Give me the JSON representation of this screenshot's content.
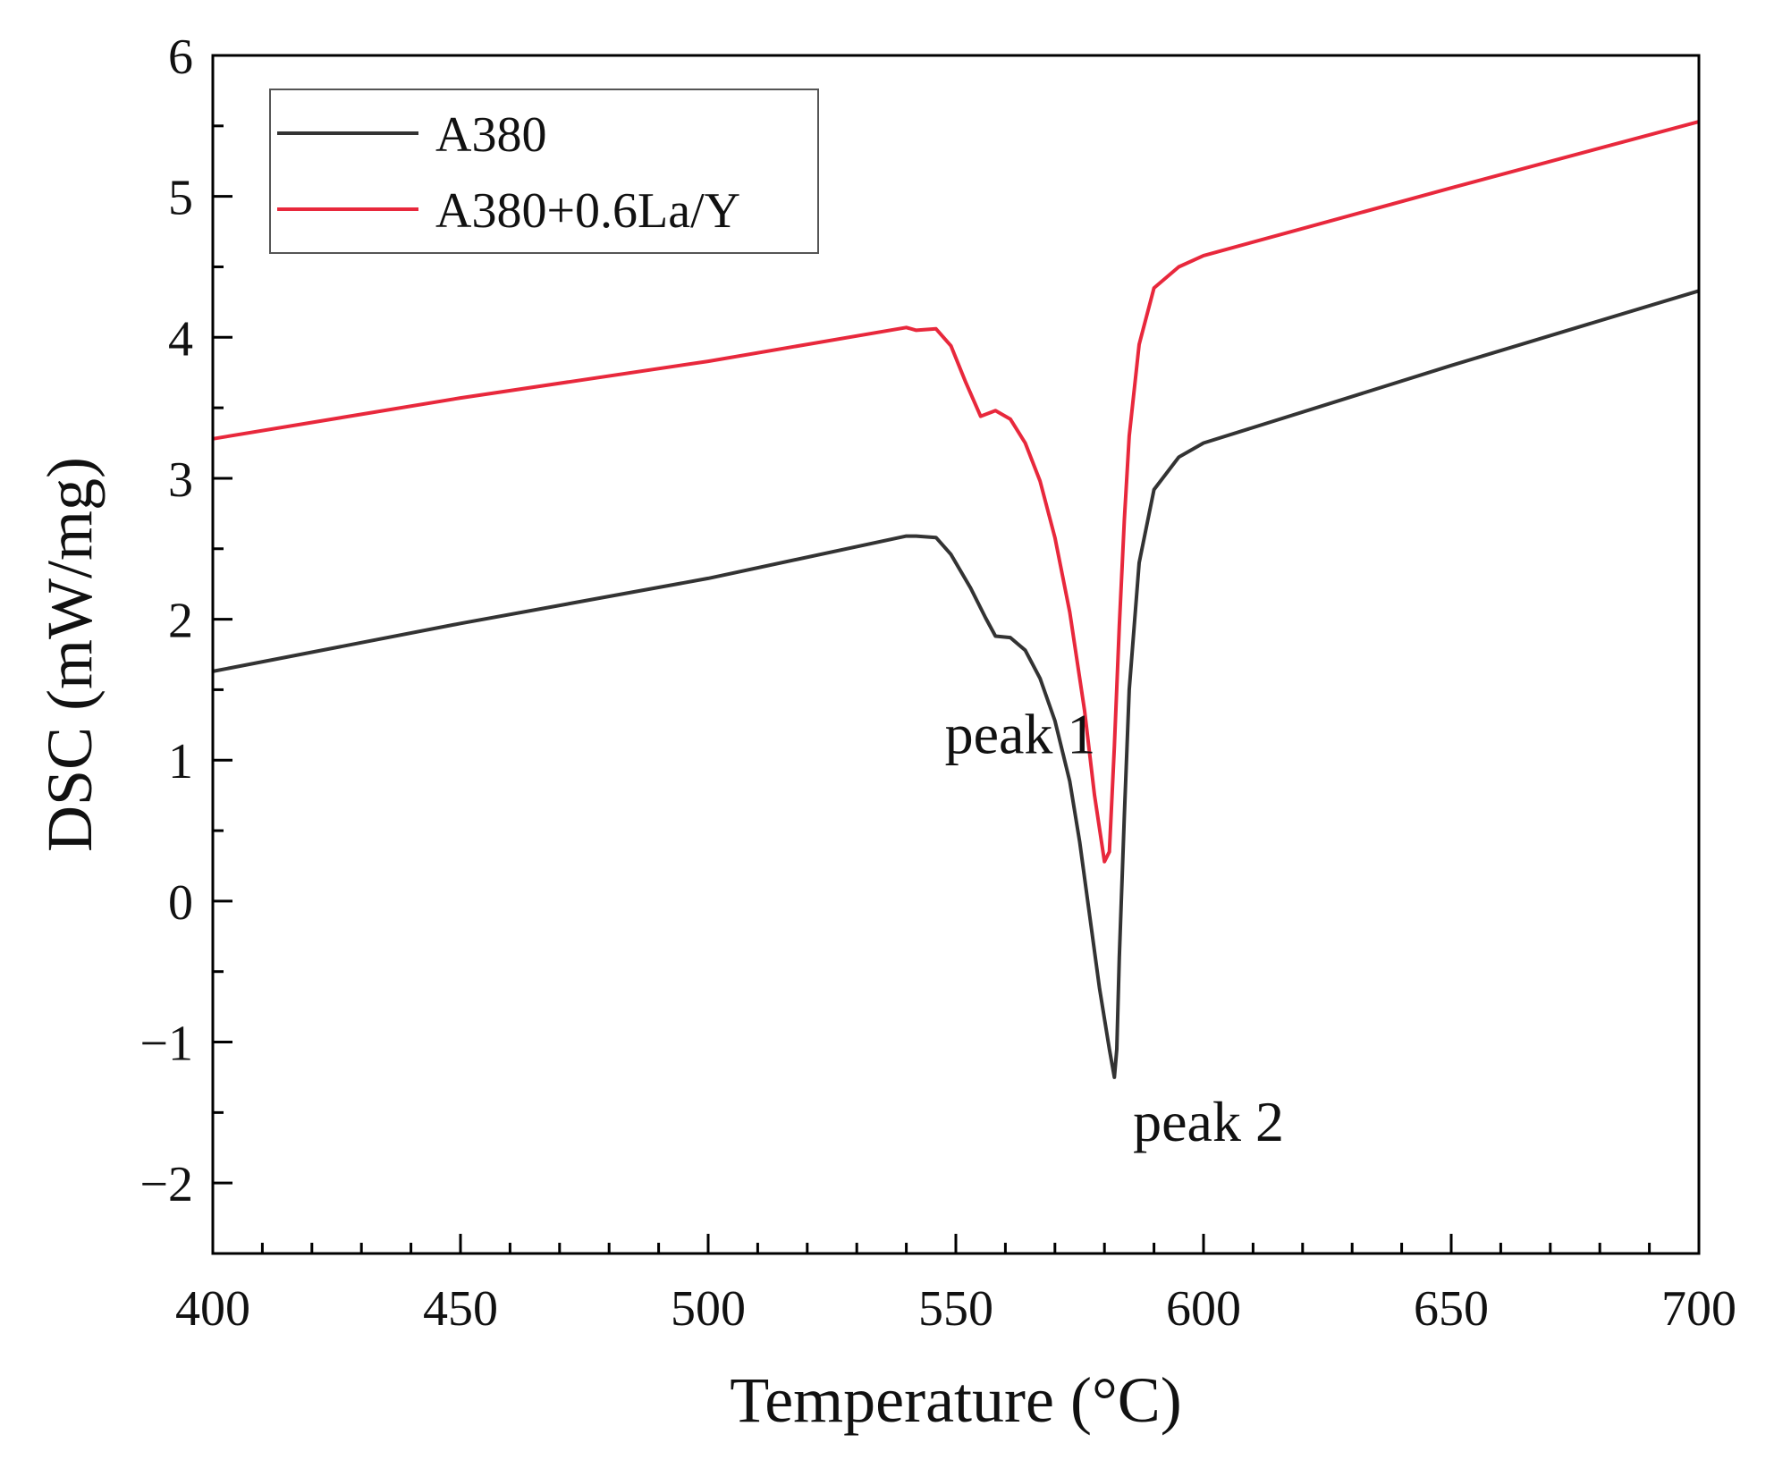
{
  "chart_data": {
    "type": "line",
    "title": "",
    "xlabel": "Temperature (°C)",
    "ylabel": "DSC (mW/mg)",
    "xlim": [
      400,
      700
    ],
    "ylim": [
      -2.5,
      6
    ],
    "xticks": [
      400,
      450,
      500,
      550,
      600,
      650,
      700
    ],
    "xtick_labels": [
      "400",
      "450",
      "500",
      "550",
      "600",
      "650",
      "700"
    ],
    "yticks": [
      -2,
      -1,
      0,
      1,
      2,
      3,
      4,
      5,
      6
    ],
    "ytick_labels": [
      "−2",
      "−1",
      "0",
      "1",
      "2",
      "3",
      "4",
      "5",
      "6"
    ],
    "legend_position": "top-left",
    "series": [
      {
        "name": "A380",
        "color": "#333333",
        "points": [
          [
            400,
            1.63
          ],
          [
            450,
            1.97
          ],
          [
            500,
            2.29
          ],
          [
            540,
            2.59
          ],
          [
            542,
            2.59
          ],
          [
            546,
            2.58
          ],
          [
            549,
            2.46
          ],
          [
            553,
            2.22
          ],
          [
            556,
            2.01
          ],
          [
            558,
            1.88
          ],
          [
            561,
            1.87
          ],
          [
            564,
            1.78
          ],
          [
            567,
            1.58
          ],
          [
            570,
            1.28
          ],
          [
            573,
            0.85
          ],
          [
            575,
            0.42
          ],
          [
            577,
            -0.1
          ],
          [
            579,
            -0.62
          ],
          [
            581,
            -1.05
          ],
          [
            582,
            -1.25
          ],
          [
            582.5,
            -1.05
          ],
          [
            583,
            -0.4
          ],
          [
            584,
            0.6
          ],
          [
            585,
            1.5
          ],
          [
            587,
            2.4
          ],
          [
            590,
            2.92
          ],
          [
            595,
            3.15
          ],
          [
            600,
            3.25
          ],
          [
            650,
            3.8
          ],
          [
            700,
            4.33
          ]
        ]
      },
      {
        "name": "A380+0.6La/Y",
        "color": "#e8283c",
        "points": [
          [
            400,
            3.28
          ],
          [
            450,
            3.57
          ],
          [
            500,
            3.83
          ],
          [
            540,
            4.07
          ],
          [
            542,
            4.05
          ],
          [
            546,
            4.06
          ],
          [
            549,
            3.94
          ],
          [
            552,
            3.68
          ],
          [
            555,
            3.44
          ],
          [
            558,
            3.48
          ],
          [
            561,
            3.42
          ],
          [
            564,
            3.25
          ],
          [
            567,
            2.98
          ],
          [
            570,
            2.58
          ],
          [
            573,
            2.05
          ],
          [
            576,
            1.35
          ],
          [
            578,
            0.75
          ],
          [
            580,
            0.28
          ],
          [
            581,
            0.35
          ],
          [
            582,
            1.1
          ],
          [
            583,
            1.95
          ],
          [
            584,
            2.7
          ],
          [
            585,
            3.3
          ],
          [
            587,
            3.95
          ],
          [
            590,
            4.35
          ],
          [
            595,
            4.5
          ],
          [
            600,
            4.58
          ],
          [
            650,
            5.06
          ],
          [
            700,
            5.53
          ]
        ]
      }
    ],
    "annotations": [
      {
        "text": "peak 1",
        "x": 563,
        "y": 1.05,
        "anchor": "middle"
      },
      {
        "text": "peak 2",
        "x": 601,
        "y": -1.7,
        "anchor": "middle"
      }
    ]
  }
}
